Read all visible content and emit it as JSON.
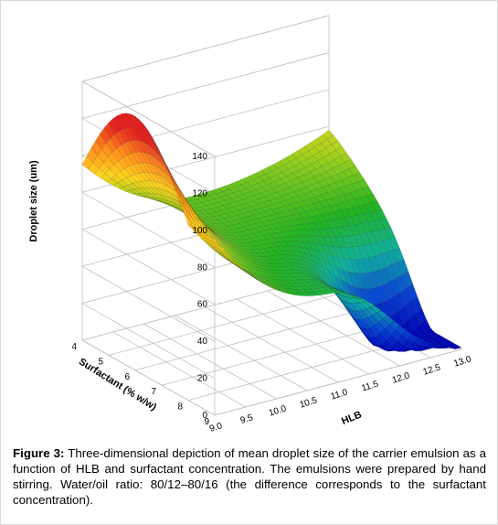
{
  "chart_data": {
    "type": "surface3d",
    "zlabel": "Droplet size (um)",
    "xlabel": "HLB",
    "ylabel": "Surfactant (% w/w)",
    "z_ticks": [
      "0",
      "20",
      "40",
      "60",
      "80",
      "100",
      "120",
      "140"
    ],
    "x_ticks": [
      "9.0",
      "9.5",
      "10.0",
      "10.5",
      "11.0",
      "11.5",
      "12.0",
      "12.5",
      "13.0"
    ],
    "y_ticks": [
      "4",
      "5",
      "6",
      "7",
      "8",
      "9"
    ],
    "zlim": [
      0,
      140
    ],
    "xlim": [
      9.0,
      13.0
    ],
    "ylim": [
      4,
      9
    ],
    "colormap": [
      "#0000b4",
      "#0a46d2",
      "#10b0a0",
      "#22b422",
      "#a8d21c",
      "#ffd21e",
      "#ff8c1e",
      "#e61e1e"
    ],
    "surface_points": [
      {
        "hlb": 9.0,
        "surfactant": 4,
        "droplet": 95
      },
      {
        "hlb": 9.0,
        "surfactant": 6.5,
        "droplet": 125
      },
      {
        "hlb": 9.0,
        "surfactant": 9,
        "droplet": 120
      },
      {
        "hlb": 11.0,
        "surfactant": 4,
        "droplet": 72
      },
      {
        "hlb": 11.0,
        "surfactant": 6.5,
        "droplet": 52
      },
      {
        "hlb": 11.0,
        "surfactant": 9,
        "droplet": 45
      },
      {
        "hlb": 13.0,
        "surfactant": 4,
        "droplet": 78
      },
      {
        "hlb": 13.0,
        "surfactant": 6.5,
        "droplet": 30
      },
      {
        "hlb": 13.0,
        "surfactant": 9,
        "droplet": 1
      }
    ]
  },
  "caption": {
    "label": "Figure 3:",
    "text": " Three-dimensional depiction of mean droplet size of the carrier emulsion as a function of HLB and surfactant concentration. The emulsions were prepared by hand stirring. Water/oil ratio: 80/12–80/16 (the difference corresponds to the surfactant concentration)."
  }
}
